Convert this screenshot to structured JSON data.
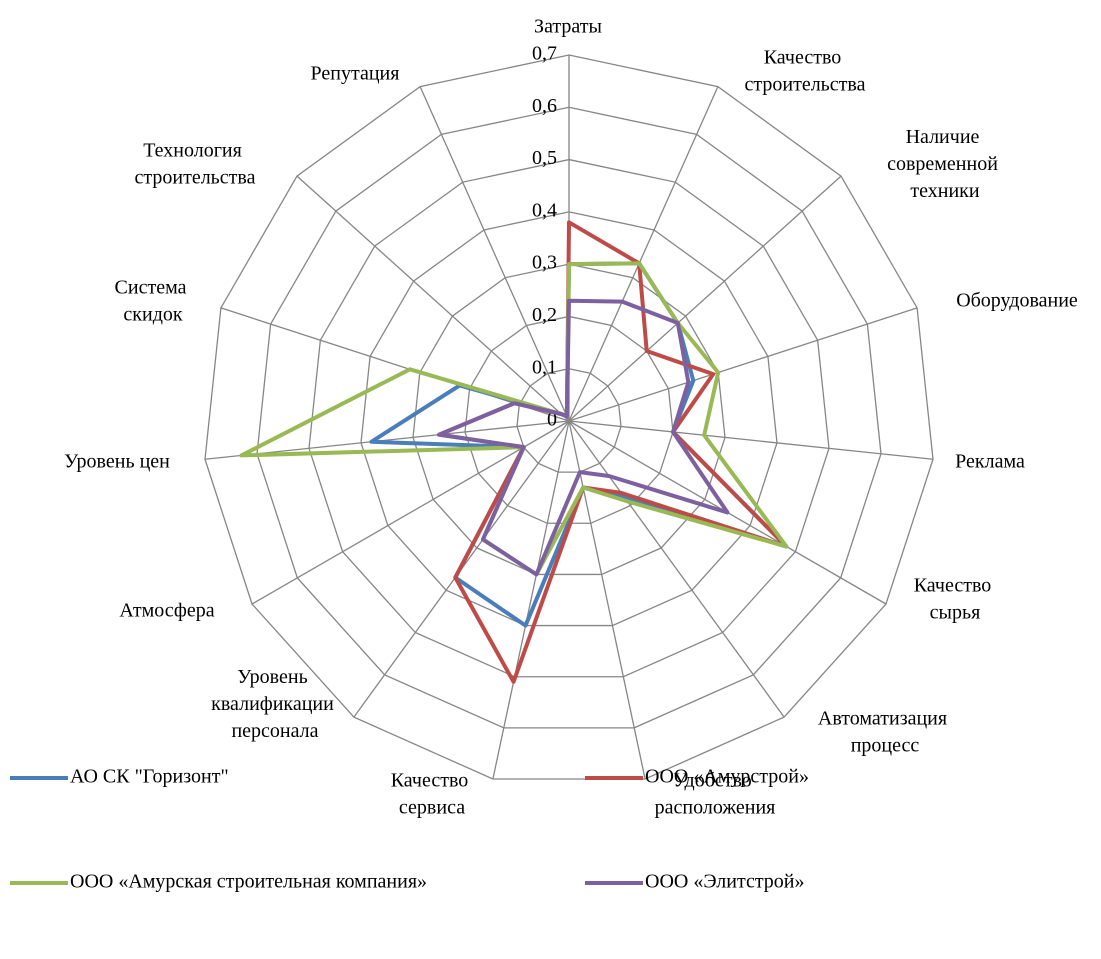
{
  "chart_data": {
    "type": "radar",
    "categories": [
      "Затраты",
      "Качество строительства",
      "Наличие современной техники",
      "Оборудование",
      "Реклама",
      "Качество сырья",
      "Автоматизация процесс",
      "Удобство расположения",
      "Качество сервиса",
      "Уровень квалификации персонала",
      "Атмосфера",
      "Уровень цен",
      "Система скидок",
      "Технология строительства",
      "Репутация"
    ],
    "series": [
      {
        "name": "АО СК \"Горизонт\"",
        "color": "#4a7ebb",
        "values": [
          0.3,
          0.33,
          0.28,
          0.25,
          0.2,
          0.48,
          0.18,
          0.13,
          0.4,
          0.37,
          0.1,
          0.38,
          0.22,
          0.02,
          0.01
        ]
      },
      {
        "name": "ООО «Амурстрой»",
        "color": "#be4b48",
        "values": [
          0.38,
          0.33,
          0.2,
          0.29,
          0.2,
          0.48,
          0.17,
          0.13,
          0.51,
          0.37,
          0.1,
          0.25,
          0.11,
          0.02,
          0.01
        ]
      },
      {
        "name": "ООО «Амурская строительная компания»",
        "color": "#98b954",
        "values": [
          0.3,
          0.33,
          0.28,
          0.3,
          0.26,
          0.48,
          0.19,
          0.13,
          0.3,
          0.28,
          0.1,
          0.63,
          0.32,
          0.02,
          0.01
        ]
      },
      {
        "name": "ООО «Элитстрой»",
        "color": "#7d60a0",
        "values": [
          0.23,
          0.25,
          0.28,
          0.24,
          0.2,
          0.35,
          0.13,
          0.1,
          0.3,
          0.28,
          0.1,
          0.25,
          0.11,
          0.02,
          0.01
        ]
      }
    ],
    "ylim": [
      0,
      0.7
    ],
    "yticks": [
      0,
      {
        "value": 0.1,
        "label": "0,1"
      },
      {
        "value": 0.2,
        "label": "0,2"
      },
      {
        "value": 0.3,
        "label": "0,3"
      },
      {
        "value": 0.4,
        "label": "0,4"
      },
      {
        "value": 0.5,
        "label": "0,5"
      },
      {
        "value": 0.6,
        "label": "0,6"
      },
      {
        "value": 0.7,
        "label": "0,7"
      }
    ],
    "grid": true,
    "legend": "bottom"
  }
}
